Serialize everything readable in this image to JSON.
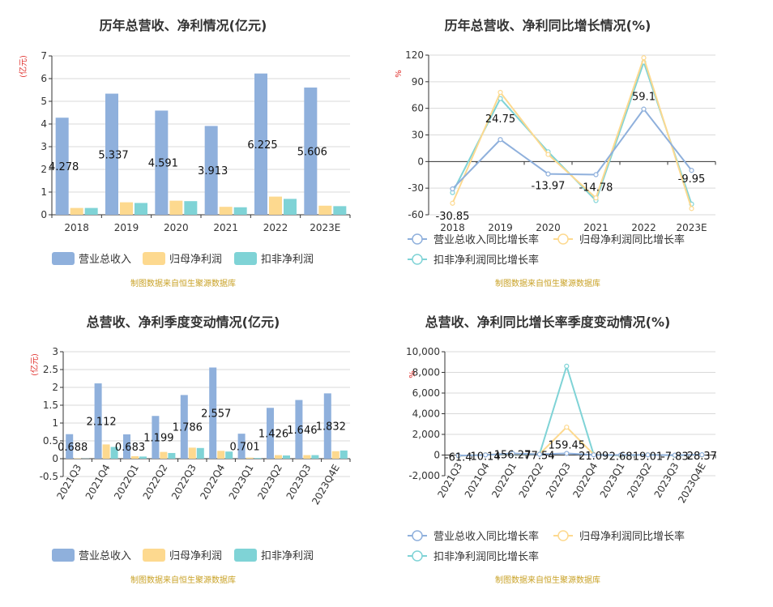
{
  "chart_data": [
    {
      "type": "bar",
      "title": "历年总营收、净利情况(亿元)",
      "unit_label": "(亿元)",
      "categories": [
        "2018",
        "2019",
        "2020",
        "2021",
        "2022",
        "2023E"
      ],
      "ylim": [
        0,
        7
      ],
      "yticks": [
        0,
        1,
        2,
        3,
        4,
        5,
        6,
        7
      ],
      "ytick_labels": [
        "0",
        "1",
        "2",
        "3",
        "4",
        "5",
        "6",
        "7"
      ],
      "series": [
        {
          "name": "营业总收入",
          "color": "#8fb0dc",
          "values": [
            4.278,
            5.337,
            4.591,
            3.913,
            6.225,
            5.606
          ],
          "labels": [
            "4.278",
            "5.337",
            "4.591",
            "3.913",
            "6.225",
            "5.606"
          ]
        },
        {
          "name": "归母净利润",
          "color": "#fdd98f",
          "values": [
            0.3,
            0.55,
            0.62,
            0.35,
            0.8,
            0.4
          ]
        },
        {
          "name": "扣非净利润",
          "color": "#7fd3d6",
          "values": [
            0.3,
            0.52,
            0.6,
            0.33,
            0.7,
            0.38
          ]
        }
      ],
      "grid": true,
      "legend_position": "bottom",
      "source": "制图数据来自恒生聚源数据库"
    },
    {
      "type": "line",
      "title": "历年总营收、净利同比增长情况(%)",
      "unit_label": "%",
      "categories": [
        "2018",
        "2019",
        "2020",
        "2021",
        "2022",
        "2023E"
      ],
      "ylim": [
        -60,
        120
      ],
      "yticks": [
        -60,
        -30,
        0,
        30,
        60,
        90,
        120
      ],
      "ytick_labels": [
        "-60",
        "-30",
        "0",
        "30",
        "60",
        "90",
        "120"
      ],
      "series": [
        {
          "name": "营业总收入同比增长率",
          "color": "#8fb0dc",
          "values": [
            -30.85,
            24.75,
            -13.97,
            -14.78,
            59.1,
            -9.95
          ],
          "labels": [
            "-30.85",
            "24.75",
            "-13.97",
            "-14.78",
            "59.1",
            "-9.95"
          ]
        },
        {
          "name": "归母净利润同比增长率",
          "color": "#fdd98f",
          "values": [
            -47,
            78,
            8,
            -41,
            117,
            -53
          ]
        },
        {
          "name": "扣非净利润同比增长率",
          "color": "#7fd3d6",
          "values": [
            -35,
            71,
            11,
            -44,
            112,
            -48
          ]
        }
      ],
      "grid": true,
      "legend_position": "bottom",
      "source": "制图数据来自恒生聚源数据库"
    },
    {
      "type": "bar",
      "title": "总营收、净利季度变动情况(亿元)",
      "unit_label": "(亿元)",
      "categories": [
        "2021Q3",
        "2021Q4",
        "2022Q1",
        "2022Q2",
        "2022Q3",
        "2022Q4",
        "2023Q1",
        "2023Q2",
        "2023Q3",
        "2023Q4E"
      ],
      "ylim": [
        -0.5,
        3
      ],
      "yticks": [
        -0.5,
        0,
        0.5,
        1,
        1.5,
        2,
        2.5,
        3
      ],
      "ytick_labels": [
        "-0.5",
        "0",
        "0.5",
        "1",
        "1.5",
        "2",
        "2.5",
        "3"
      ],
      "series": [
        {
          "name": "营业总收入",
          "color": "#8fb0dc",
          "values": [
            0.688,
            2.112,
            0.683,
            1.199,
            1.786,
            2.557,
            0.701,
            1.426,
            1.646,
            1.832
          ],
          "labels": [
            "0.688",
            "2.112",
            "0.683",
            "1.199",
            "1.786",
            "2.557",
            "0.701",
            "1.426",
            "1.646",
            "1.832"
          ]
        },
        {
          "name": "归母净利润",
          "color": "#fdd98f",
          "values": [
            0.01,
            0.4,
            0.07,
            0.19,
            0.31,
            0.22,
            0.03,
            0.1,
            0.1,
            0.21
          ]
        },
        {
          "name": "扣非净利润",
          "color": "#7fd3d6",
          "values": [
            0.005,
            0.33,
            0.06,
            0.16,
            0.3,
            0.2,
            0.02,
            0.09,
            0.1,
            0.23
          ]
        }
      ],
      "grid": true,
      "legend_position": "bottom",
      "source": "制图数据来自恒生聚源数据库"
    },
    {
      "type": "line",
      "title": "总营收、净利同比增长率季度变动情况(%)",
      "unit_label": "%",
      "categories": [
        "2021Q3",
        "2021Q4",
        "2022Q1",
        "2022Q2",
        "2022Q3",
        "2022Q4",
        "2023Q1",
        "2023Q2",
        "2023Q3",
        "2023Q4E"
      ],
      "ylim": [
        -2000,
        10000
      ],
      "yticks": [
        -2000,
        0,
        2000,
        4000,
        6000,
        8000,
        10000
      ],
      "ytick_labels": [
        "-2,000",
        "0",
        "2,000",
        "4,000",
        "6,000",
        "8,000",
        "10,000"
      ],
      "series": [
        {
          "name": "营业总收入同比增长率",
          "color": "#8fb0dc",
          "values": [
            -61.4,
            10.14,
            156.27,
            77.54,
            159.45,
            21.09,
            2.68,
            19.01,
            -7.83,
            28.37
          ],
          "labels": [
            "-61.4",
            "10.14",
            "156.27",
            "77.54",
            "159.45",
            "21.09",
            "2.68",
            "19.01",
            "-7.83",
            "28.37"
          ]
        },
        {
          "name": "归母净利润同比增长率",
          "color": "#fdd98f",
          "values": [
            -80,
            30,
            120,
            90,
            2700,
            60,
            -40,
            40,
            -20,
            10
          ]
        },
        {
          "name": "扣非净利润同比增长率",
          "color": "#7fd3d6",
          "values": [
            -70,
            20,
            100,
            80,
            8600,
            50,
            -60,
            30,
            -30,
            20
          ]
        }
      ],
      "grid": true,
      "legend_position": "bottom",
      "source": "制图数据来自恒生聚源数据库"
    }
  ]
}
